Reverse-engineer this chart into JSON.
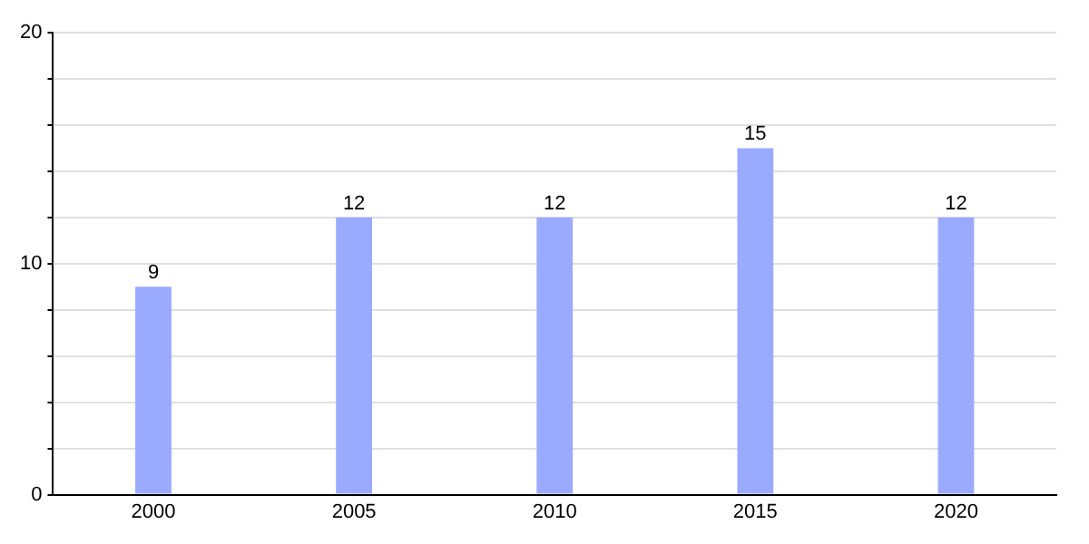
{
  "chart_data": {
    "type": "bar",
    "categories": [
      "2000",
      "2005",
      "2010",
      "2015",
      "2020"
    ],
    "values": [
      9,
      12,
      12,
      15,
      12
    ],
    "color": "#99aaff",
    "ylim": [
      0,
      20
    ],
    "yticks": [
      0,
      {
        "value": 2,
        "label": null
      },
      {
        "value": 4,
        "label": null
      },
      {
        "value": 6,
        "label": null
      },
      {
        "value": 8,
        "label": null
      },
      10,
      {
        "value": 12,
        "label": null
      },
      {
        "value": 14,
        "label": null
      },
      {
        "value": 16,
        "label": null
      },
      {
        "value": 18,
        "label": null
      },
      20
    ],
    "grid": "y",
    "data_labels": true
  }
}
